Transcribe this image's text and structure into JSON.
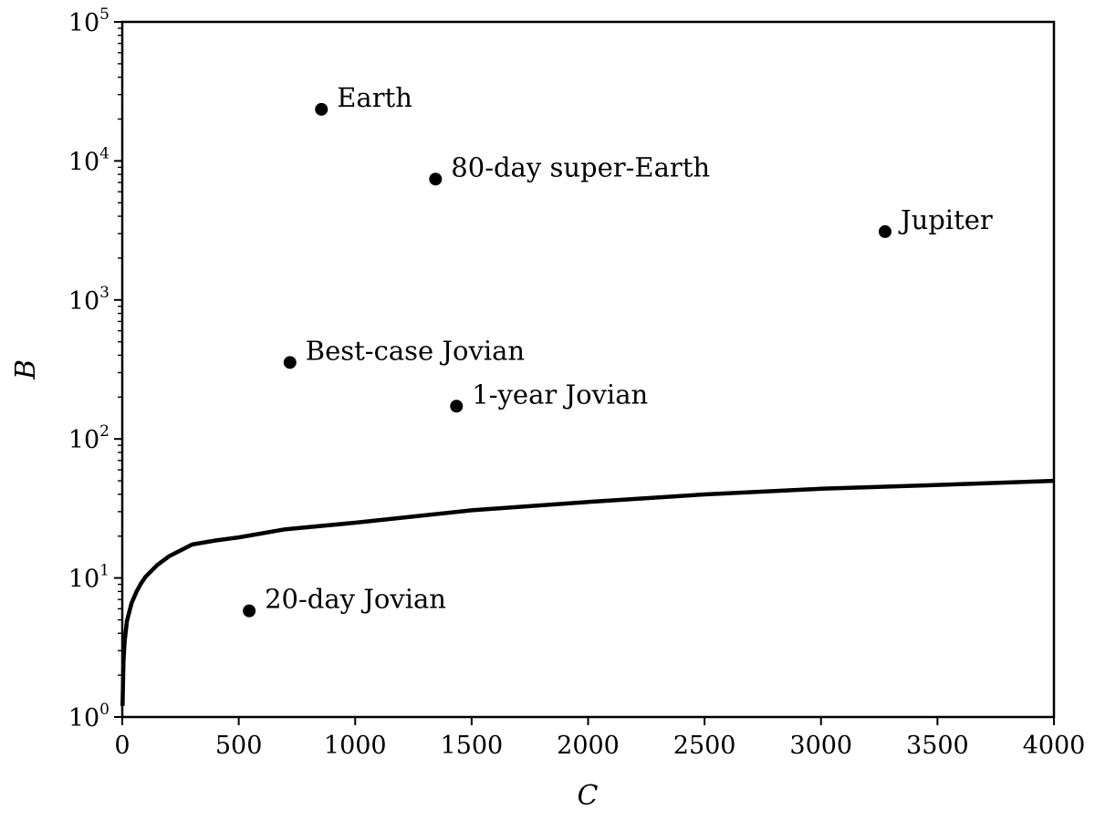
{
  "chart_data": {
    "type": "scatter",
    "xlabel": "C",
    "ylabel": "B",
    "xlim": [
      0,
      4000
    ],
    "ylim": [
      1,
      100000
    ],
    "y_scale": "log",
    "grid": false,
    "x_ticks": [
      "0",
      "500",
      "1000",
      "1500",
      "2000",
      "2500",
      "3000",
      "3500",
      "4000"
    ],
    "y_ticks": [
      {
        "base": "10",
        "exp": "0"
      },
      {
        "base": "10",
        "exp": "1"
      },
      {
        "base": "10",
        "exp": "2"
      },
      {
        "base": "10",
        "exp": "3"
      },
      {
        "base": "10",
        "exp": "4"
      },
      {
        "base": "10",
        "exp": "5"
      }
    ],
    "points": [
      {
        "label": "Earth",
        "x": 855,
        "y": 23500
      },
      {
        "label": "80-day super-Earth",
        "x": 1345,
        "y": 7400
      },
      {
        "label": "Jupiter",
        "x": 3275,
        "y": 3100
      },
      {
        "label": "Best-case Jovian",
        "x": 720,
        "y": 355
      },
      {
        "label": "1-year Jovian",
        "x": 1435,
        "y": 172
      },
      {
        "label": "20-day Jovian",
        "x": 545,
        "y": 5.8
      }
    ],
    "curve": {
      "x": [
        1,
        5,
        10,
        20,
        40,
        60,
        80,
        100,
        150,
        200,
        300,
        400,
        500,
        700,
        1000,
        1500,
        2000,
        2500,
        3000,
        3500,
        4000
      ],
      "y": [
        1.2,
        2.5,
        3.5,
        4.9,
        6.6,
        7.9,
        9.1,
        10.2,
        12.4,
        14.3,
        17.4,
        18.6,
        19.6,
        22.4,
        25.0,
        30.7,
        35.2,
        39.9,
        43.8,
        46.7,
        50.0
      ]
    }
  }
}
